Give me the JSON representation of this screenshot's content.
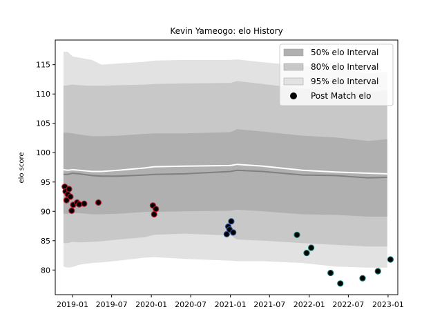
{
  "chart_data": {
    "type": "scatter",
    "title": "Kevin Yameogo: elo History",
    "xlabel": "",
    "ylabel": "elo score",
    "xlim": [
      "2018-10-13",
      "2023-02-15"
    ],
    "ylim": [
      75.8,
      119.2
    ],
    "x_ticks": [
      "2019-01",
      "2019-07",
      "2020-01",
      "2020-07",
      "2021-01",
      "2021-07",
      "2022-01",
      "2022-07",
      "2023-01"
    ],
    "x_tick_dates": [
      "2019-01-01",
      "2019-07-01",
      "2020-01-01",
      "2020-07-01",
      "2021-01-01",
      "2021-07-01",
      "2022-01-01",
      "2022-07-01",
      "2023-01-01"
    ],
    "y_ticks": [
      80,
      85,
      90,
      95,
      100,
      105,
      110,
      115
    ],
    "grid": false,
    "legend_position": "top-right",
    "legend": [
      {
        "label": "50% elo Interval",
        "kind": "patch",
        "color": "#b0b0b0"
      },
      {
        "label": "80% elo Interval",
        "kind": "patch",
        "color": "#c8c8c8"
      },
      {
        "label": "95% elo Interval",
        "kind": "patch",
        "color": "#e2e2e2"
      },
      {
        "label": "Post Match elo",
        "kind": "marker",
        "color": "#000000"
      }
    ],
    "bands": {
      "x": [
        "2018-11-20",
        "2018-12-10",
        "2019-01-01",
        "2019-02-01",
        "2019-04-01",
        "2019-05-15",
        "2019-08-01",
        "2019-12-01",
        "2020-01-15",
        "2020-06-01",
        "2021-01-01",
        "2021-02-01",
        "2021-06-01",
        "2021-12-01",
        "2022-05-01",
        "2022-10-01",
        "2022-12-28"
      ],
      "center": [
        96.3,
        96.3,
        96.5,
        96.4,
        96.1,
        96.0,
        96.0,
        96.2,
        96.3,
        96.4,
        96.8,
        97.0,
        96.8,
        96.2,
        96.1,
        95.7,
        95.8
      ],
      "mean_line": [
        97.1,
        97.0,
        97.1,
        97.0,
        96.8,
        96.8,
        97.0,
        97.4,
        97.6,
        97.7,
        97.8,
        98.0,
        97.7,
        97.0,
        96.7,
        96.5,
        96.4
      ],
      "band50_upper": [
        103.4,
        103.4,
        103.3,
        103.1,
        102.8,
        102.8,
        102.9,
        103.2,
        103.3,
        103.3,
        103.5,
        104.0,
        103.6,
        102.9,
        102.6,
        102.0,
        102.3
      ],
      "band50_lower": [
        89.6,
        89.6,
        89.7,
        89.7,
        89.5,
        89.5,
        89.6,
        89.9,
        89.9,
        90.0,
        90.1,
        90.3,
        90.0,
        89.5,
        89.4,
        89.1,
        89.1
      ],
      "band80_upper": [
        111.4,
        111.5,
        111.6,
        111.5,
        111.4,
        111.4,
        111.5,
        111.6,
        111.7,
        111.8,
        111.9,
        112.2,
        111.7,
        110.9,
        110.6,
        110.2,
        110.7
      ],
      "band80_lower": [
        84.6,
        84.6,
        84.8,
        84.7,
        84.8,
        84.9,
        85.2,
        85.6,
        86.0,
        86.2,
        85.9,
        85.2,
        85.0,
        84.6,
        84.3,
        84.0,
        84.0
      ],
      "band95_upper": [
        117.2,
        117.2,
        116.4,
        116.2,
        115.8,
        115.0,
        115.2,
        115.5,
        115.7,
        115.8,
        115.8,
        115.9,
        115.4,
        114.8,
        114.4,
        113.5,
        113.8
      ],
      "band95_lower": [
        80.6,
        80.4,
        80.5,
        80.9,
        81.2,
        81.3,
        81.6,
        82.1,
        82.2,
        81.9,
        81.6,
        81.5,
        81.5,
        81.2,
        80.6,
        80.4,
        80.4
      ]
    },
    "series": [
      {
        "edge_color": "#b5172b",
        "points": [
          {
            "x": "2018-11-26",
            "y": 94.2
          },
          {
            "x": "2018-11-30",
            "y": 93.4
          },
          {
            "x": "2018-12-04",
            "y": 91.9
          },
          {
            "x": "2018-12-10",
            "y": 92.9
          },
          {
            "x": "2018-12-16",
            "y": 93.8
          },
          {
            "x": "2018-12-22",
            "y": 92.5
          },
          {
            "x": "2018-12-28",
            "y": 90.1
          },
          {
            "x": "2019-01-04",
            "y": 91.1
          },
          {
            "x": "2019-01-22",
            "y": 91.5
          },
          {
            "x": "2019-02-01",
            "y": 91.2
          },
          {
            "x": "2019-02-24",
            "y": 91.3
          },
          {
            "x": "2019-05-01",
            "y": 91.5
          },
          {
            "x": "2020-01-08",
            "y": 91.0
          },
          {
            "x": "2020-01-14",
            "y": 89.5
          },
          {
            "x": "2020-01-22",
            "y": 90.4
          }
        ]
      },
      {
        "edge_color": "#2c4f8a",
        "points": [
          {
            "x": "2020-12-15",
            "y": 86.1
          },
          {
            "x": "2020-12-22",
            "y": 87.4
          },
          {
            "x": "2020-12-28",
            "y": 86.9
          },
          {
            "x": "2021-01-05",
            "y": 88.3
          },
          {
            "x": "2021-01-14",
            "y": 86.4
          }
        ]
      },
      {
        "edge_color": "#0b6b63",
        "points": [
          {
            "x": "2021-11-05",
            "y": 86.0
          },
          {
            "x": "2021-12-20",
            "y": 82.9
          },
          {
            "x": "2022-01-10",
            "y": 83.8
          },
          {
            "x": "2022-04-10",
            "y": 79.5
          },
          {
            "x": "2022-05-25",
            "y": 77.7
          },
          {
            "x": "2022-09-05",
            "y": 78.6
          },
          {
            "x": "2022-11-15",
            "y": 79.8
          },
          {
            "x": "2023-01-12",
            "y": 81.8
          }
        ]
      }
    ]
  },
  "colors": {
    "band95": "#e2e2e2",
    "band80": "#c8c8c8",
    "band50": "#b0b0b0",
    "center_line": "#808080",
    "mean_line": "#ffffff",
    "marker_fill": "#000000"
  }
}
